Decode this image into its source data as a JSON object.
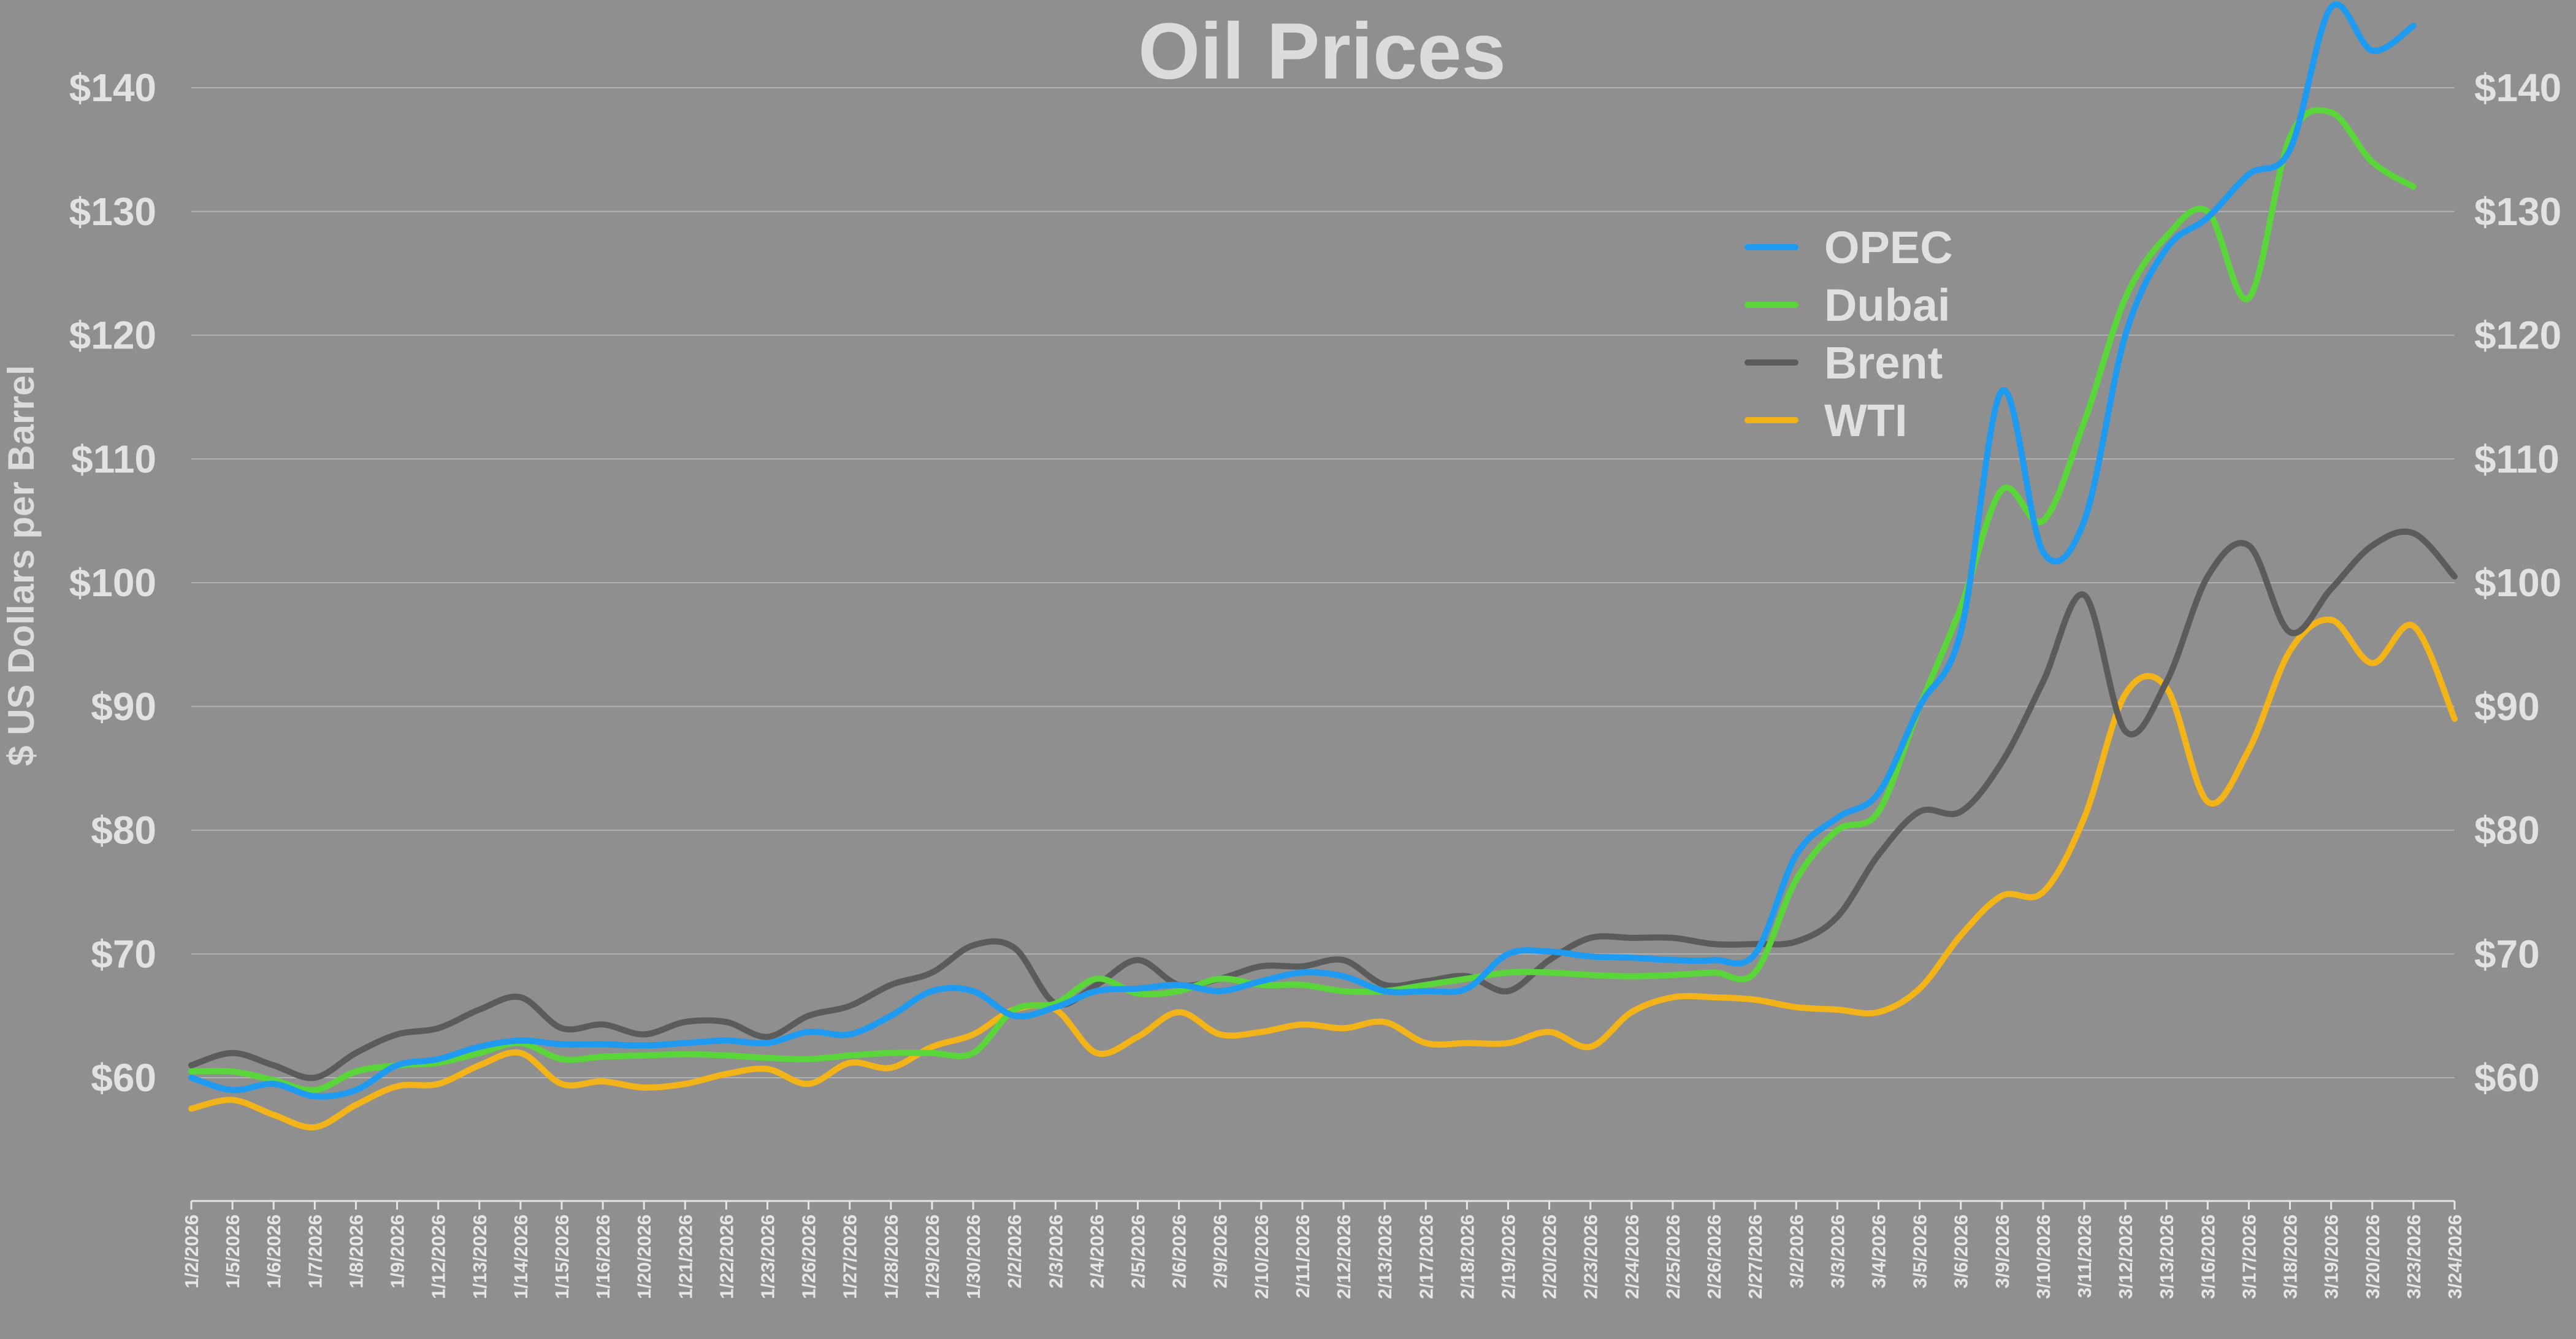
{
  "chart_data": {
    "type": "line",
    "title": "Oil Prices",
    "ylabel": "$ US Dollars per Barrel",
    "ylim": [
      50,
      145
    ],
    "yticks": [
      60,
      70,
      80,
      90,
      100,
      110,
      120,
      130,
      140
    ],
    "ytick_labels": [
      "$60",
      "$70",
      "$80",
      "$90",
      "$100",
      "$110",
      "$120",
      "$130",
      "$140"
    ],
    "right_axis": true,
    "grid": true,
    "legend_position": "upper-right-inside",
    "categories": [
      "1/2/2026",
      "1/5/2026",
      "1/6/2026",
      "1/7/2026",
      "1/8/2026",
      "1/9/2026",
      "1/12/2026",
      "1/13/2026",
      "1/14/2026",
      "1/15/2026",
      "1/16/2026",
      "1/20/2026",
      "1/21/2026",
      "1/22/2026",
      "1/23/2026",
      "1/26/2026",
      "1/27/2026",
      "1/28/2026",
      "1/29/2026",
      "1/30/2026",
      "2/2/2026",
      "2/3/2026",
      "2/4/2026",
      "2/5/2026",
      "2/6/2026",
      "2/9/2026",
      "2/10/2026",
      "2/11/2026",
      "2/12/2026",
      "2/13/2026",
      "2/17/2026",
      "2/18/2026",
      "2/19/2026",
      "2/20/2026",
      "2/23/2026",
      "2/24/2026",
      "2/25/2026",
      "2/26/2026",
      "2/27/2026",
      "3/2/2026",
      "3/3/2026",
      "3/4/2026",
      "3/5/2026",
      "3/6/2026",
      "3/9/2026",
      "3/10/2026",
      "3/11/2026",
      "3/12/2026",
      "3/13/2026",
      "3/16/2026",
      "3/17/2026",
      "3/18/2026",
      "3/19/2026",
      "3/20/2026",
      "3/23/2026",
      "3/24/2026"
    ],
    "series": [
      {
        "name": "OPEC",
        "color": "#1e9bf0",
        "values": [
          60,
          59,
          59.5,
          58.5,
          59,
          61,
          61.5,
          62.5,
          63,
          62.7,
          62.7,
          62.6,
          62.8,
          63,
          62.8,
          63.7,
          63.5,
          65,
          67,
          67,
          65,
          65.7,
          67,
          67.2,
          67.5,
          67,
          67.8,
          68.5,
          68.2,
          67,
          67,
          67.2,
          70,
          70.2,
          69.8,
          69.7,
          69.5,
          69.5,
          70,
          78,
          81,
          83,
          90,
          96,
          115.5,
          102.5,
          105,
          120,
          127,
          129.5,
          133,
          135,
          146.5,
          143,
          145,
          null
        ]
      },
      {
        "name": "Dubai",
        "color": "#5bd63a",
        "values": [
          60.5,
          60.5,
          59.8,
          59,
          60.5,
          61,
          61.2,
          62,
          62.8,
          61.5,
          61.7,
          61.8,
          61.9,
          61.8,
          61.6,
          61.5,
          61.8,
          62,
          62,
          62,
          65.5,
          66,
          68,
          66.8,
          67,
          68,
          67.5,
          67.5,
          67,
          67,
          67.5,
          68,
          68.5,
          68.5,
          68.3,
          68.2,
          68.3,
          68.5,
          68.5,
          76,
          80,
          81.5,
          90,
          98,
          107.5,
          105,
          113,
          123,
          128,
          130,
          123,
          136,
          138,
          134,
          132,
          null
        ]
      },
      {
        "name": "Brent",
        "color": "#5b5b5b",
        "values": [
          61,
          62,
          61,
          60,
          62,
          63.5,
          64,
          65.5,
          66.5,
          64,
          64.3,
          63.5,
          64.5,
          64.5,
          63.3,
          65,
          65.8,
          67.5,
          68.5,
          70.7,
          70.5,
          66,
          67.5,
          69.5,
          67.5,
          68,
          69,
          69,
          69.5,
          67.5,
          67.8,
          68.2,
          67,
          69.5,
          71.3,
          71.3,
          71.3,
          70.8,
          70.8,
          71,
          73,
          78,
          81.5,
          81.5,
          85.5,
          92,
          99,
          88,
          92,
          100.5,
          103,
          96,
          99.5,
          103,
          104,
          100.5
        ]
      },
      {
        "name": "WTI",
        "color": "#f2b418",
        "values": [
          57.5,
          58.2,
          57,
          56,
          57.8,
          59.3,
          59.5,
          61,
          62,
          59.5,
          59.7,
          59.2,
          59.5,
          60.3,
          60.7,
          59.5,
          61.2,
          60.8,
          62.5,
          63.5,
          65.5,
          65.5,
          62,
          63.3,
          65.3,
          63.5,
          63.7,
          64.3,
          64,
          64.5,
          62.8,
          62.8,
          62.8,
          63.7,
          62.5,
          65.3,
          66.5,
          66.5,
          66.3,
          65.7,
          65.5,
          65.3,
          67.2,
          71.5,
          74.7,
          75,
          81,
          91,
          91.5,
          82.3,
          86.5,
          94.5,
          97,
          93.5,
          96.5,
          89
        ]
      }
    ]
  }
}
